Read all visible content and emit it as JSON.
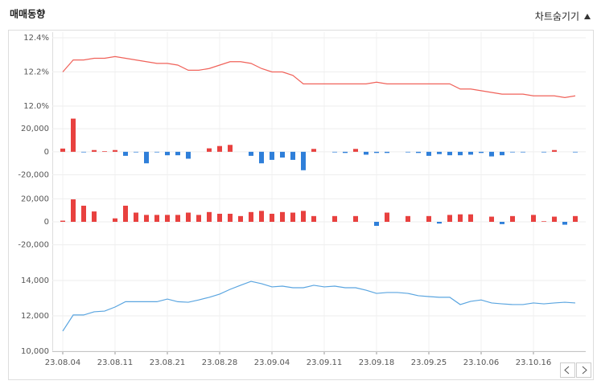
{
  "header": {
    "title": "매매동향",
    "toggle": "차트숨기기"
  },
  "chart_data": [
    {
      "type": "line",
      "color": "#f0625a",
      "values": [
        12.2,
        12.27,
        12.27,
        12.28,
        12.28,
        12.29,
        12.28,
        12.27,
        12.26,
        12.25,
        12.25,
        12.24,
        12.21,
        12.21,
        12.22,
        12.24,
        12.26,
        12.26,
        12.25,
        12.22,
        12.2,
        12.2,
        12.18,
        12.13,
        12.13,
        12.13,
        12.13,
        12.13,
        12.13,
        12.13,
        12.14,
        12.13,
        12.13,
        12.13,
        12.13,
        12.13,
        12.13,
        12.13,
        12.1,
        12.1,
        12.09,
        12.08,
        12.07,
        12.07,
        12.07,
        12.06,
        12.06,
        12.06,
        12.05,
        12.06
      ],
      "ylim": [
        12.0,
        12.4
      ],
      "yticks": [
        {
          "value": 12.0,
          "label": "12.0%"
        },
        {
          "value": 12.2,
          "label": "12.2%"
        },
        {
          "value": 12.4,
          "label": "12.4%"
        }
      ]
    },
    {
      "type": "bar",
      "color": "#e8413f",
      "negative_color": "#2f7fd9",
      "values": [
        2800,
        28800,
        -500,
        1500,
        500,
        1500,
        -3500,
        -500,
        -10000,
        -500,
        -3000,
        -3000,
        -6000,
        0,
        3000,
        5000,
        6000,
        0,
        -3500,
        -10000,
        -7000,
        -5000,
        -7000,
        -16000,
        2500,
        0,
        -500,
        -1000,
        2500,
        -2500,
        -1000,
        -1000,
        0,
        -500,
        -1000,
        -3500,
        -2000,
        -3000,
        -3000,
        -2500,
        -1000,
        -4000,
        -3000,
        -500,
        -500,
        0,
        -500,
        1500,
        0,
        -500
      ],
      "ylim": [
        -28000,
        32000
      ],
      "yticks": [
        {
          "value": -20000,
          "label": "-20,000"
        },
        0,
        {
          "value": 20000,
          "label": "20,000"
        }
      ]
    },
    {
      "type": "bar",
      "color": "#e8413f",
      "negative_color": "#2f7fd9",
      "values": [
        1000,
        19500,
        14000,
        9000,
        0,
        3000,
        14000,
        8000,
        6000,
        6000,
        6000,
        6000,
        8000,
        6000,
        8500,
        7000,
        7000,
        5000,
        8500,
        9500,
        7000,
        8500,
        8000,
        9500,
        5000,
        0,
        5000,
        0,
        5000,
        0,
        -3500,
        8000,
        0,
        5000,
        0,
        5000,
        -1500,
        6000,
        6500,
        6500,
        0,
        4500,
        -2000,
        5000,
        0,
        6000,
        500,
        4500,
        -2500,
        5000
      ],
      "ylim": [
        -30000,
        30000
      ],
      "yticks": [
        {
          "value": -20000,
          "label": "-20,000"
        },
        0,
        {
          "value": 20000,
          "label": "20,000"
        }
      ]
    },
    {
      "type": "line",
      "color": "#5aa5e0",
      "categories": [
        "23.08.04",
        null,
        null,
        null,
        null,
        "23.08.11",
        null,
        null,
        null,
        null,
        "23.08.21",
        null,
        null,
        null,
        null,
        "23.08.28",
        null,
        null,
        null,
        null,
        "23.09.04",
        null,
        null,
        null,
        null,
        "23.09.11",
        null,
        null,
        null,
        null,
        "23.09.18",
        null,
        null,
        null,
        null,
        "23.09.25",
        null,
        null,
        null,
        null,
        "23.10.06",
        null,
        null,
        null,
        null,
        "23.10.16",
        null,
        null,
        null,
        null
      ],
      "values": [
        11140,
        12050,
        12050,
        12230,
        12270,
        12500,
        12800,
        12800,
        12800,
        12800,
        12950,
        12800,
        12770,
        12900,
        13050,
        13230,
        13500,
        13730,
        13950,
        13820,
        13640,
        13680,
        13590,
        13590,
        13730,
        13640,
        13680,
        13590,
        13590,
        13450,
        13270,
        13320,
        13320,
        13270,
        13140,
        13090,
        13050,
        13050,
        12640,
        12820,
        12900,
        12730,
        12680,
        12640,
        12640,
        12730,
        12680,
        12730,
        12770,
        12730
      ],
      "ylim": [
        10000,
        14500
      ],
      "yticks": [
        {
          "value": 10000,
          "label": "10,000"
        },
        {
          "value": 12000,
          "label": "12,000"
        },
        {
          "value": 14000,
          "label": "14,000"
        }
      ]
    }
  ]
}
